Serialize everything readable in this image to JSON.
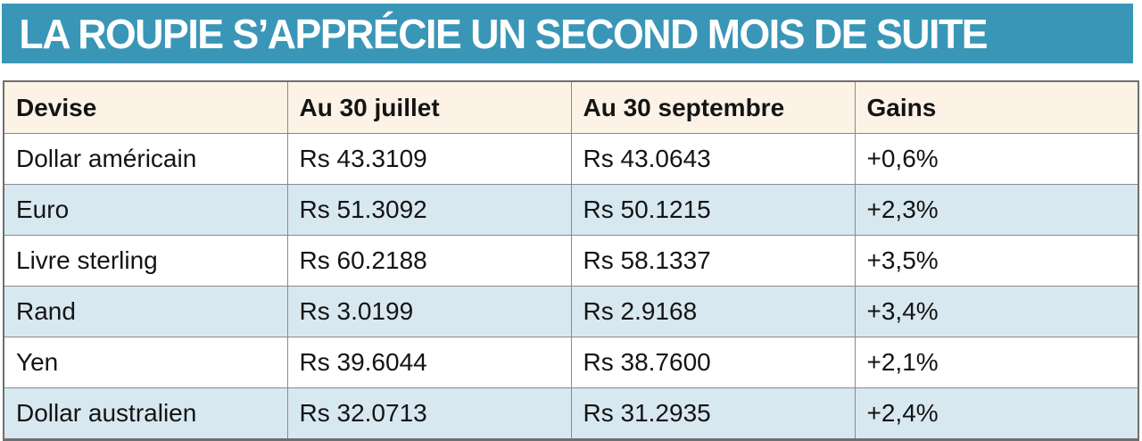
{
  "banner": {
    "title": "LA ROUPIE S’APPRÉCIE UN SECOND MOIS DE SUITE"
  },
  "chart_data": {
    "type": "table",
    "title": "LA ROUPIE S’APPRÉCIE UN SECOND MOIS DE SUITE",
    "columns": [
      "Devise",
      "Au 30 juillet",
      "Au 30 septembre",
      "Gains"
    ],
    "rows": [
      [
        "Dollar américain",
        "Rs 43.3109",
        "Rs 43.0643",
        "+0,6%"
      ],
      [
        "Euro",
        "Rs 51.3092",
        "Rs 50.1215",
        "+2,3%"
      ],
      [
        "Livre sterling",
        "Rs 60.2188",
        "Rs 58.1337",
        "+3,5%"
      ],
      [
        "Rand",
        "Rs 3.0199",
        "Rs 2.9168",
        "+3,4%"
      ],
      [
        "Yen",
        "Rs 39.6044",
        "Rs 38.7600",
        "+2,1%"
      ],
      [
        "Dollar australien",
        "Rs 32.0713",
        "Rs 31.2935",
        "+2,4%"
      ]
    ]
  },
  "colors": {
    "banner_bg": "#3a96b7",
    "banner_text": "#ffffff",
    "header_bg": "#fdf2e6",
    "row_bg": "#ffffff",
    "row_alt_bg": "#d8e8f1",
    "cell_border": "#8a8a8a",
    "outer_border": "#6f6f6f",
    "text": "#141414"
  }
}
